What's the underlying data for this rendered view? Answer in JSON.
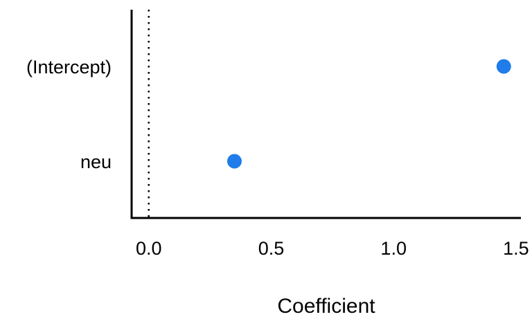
{
  "chart_data": {
    "type": "scatter",
    "title": "",
    "xlabel": "Coefficient",
    "ylabel": "",
    "xlim": [
      -0.07,
      1.52
    ],
    "x_ticks": [
      "0.0",
      "0.5",
      "1.0",
      "1.5"
    ],
    "x_tick_values": [
      0.0,
      0.5,
      1.0,
      1.5
    ],
    "categories": [
      "(Intercept)",
      "neu"
    ],
    "values": [
      1.45,
      0.35
    ],
    "reference_line": 0,
    "grid": false,
    "legend": "none",
    "point_color": "#1f7ce8"
  }
}
